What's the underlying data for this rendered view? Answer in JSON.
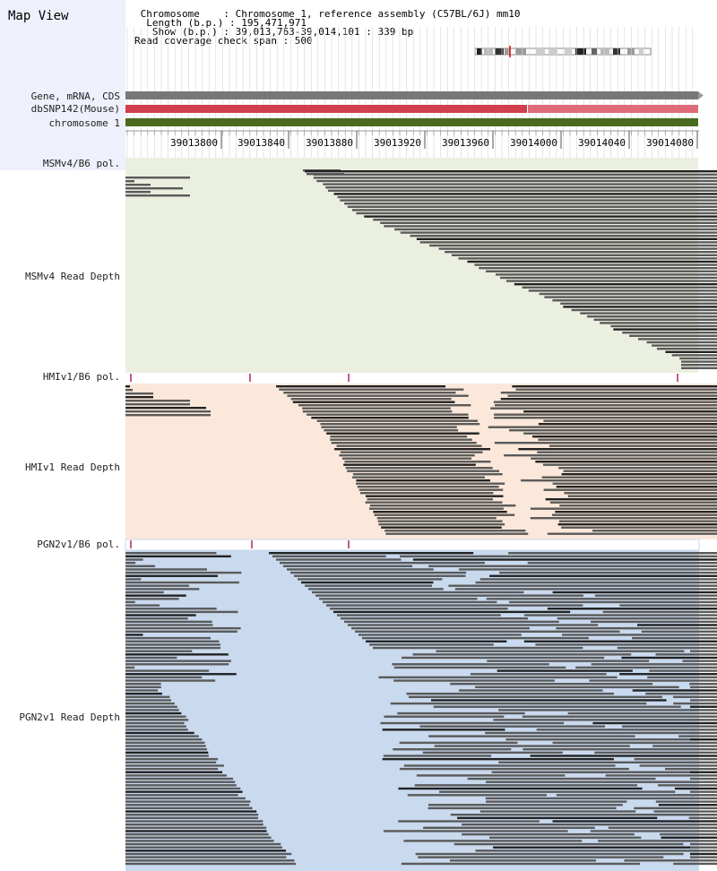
{
  "view": {
    "title": "Map View",
    "info_lines": [
      " Chromosome    : Chromosome 1, reference assembly (C57BL/6J) mm10",
      "  Length (b.p.) : 195,471,971",
      "   Show (b.p.) : 39,013,763-39,014,101 : 339 bp",
      "Read coverage check span : 500"
    ]
  },
  "tracks": {
    "gene": "Gene, mRNA, CDS",
    "snp": "dbSNP142(Mouse)",
    "chrom": "chromosome 1"
  },
  "ruler": {
    "ticks": [
      "39013800",
      "39013840",
      "39013880",
      "39013920",
      "39013960",
      "39014000",
      "39014040",
      "39014080"
    ]
  },
  "panels": [
    {
      "pol_label": "MSMv4/B6 pol.",
      "depth_label": "MSMv4 Read Depth"
    },
    {
      "pol_label": "HMIv1/B6 pol.",
      "depth_label": "HMIv1 Read Depth"
    },
    {
      "pol_label": "PGN2v1/B6 pol.",
      "depth_label": "PGN2v1 Read Depth"
    }
  ],
  "colors": {
    "gene": "#777777",
    "snp_dark": "#d0404f",
    "snp_light": "#e06b7a",
    "chrom": "#4a6a1e",
    "msm_bg": "#ebefe0",
    "hmi_bg": "#fbe8da",
    "pgn_bg": "#c9d9ee",
    "read_dark": "#333333",
    "read_mid": "#555555",
    "pol_mark": "#b02070"
  }
}
